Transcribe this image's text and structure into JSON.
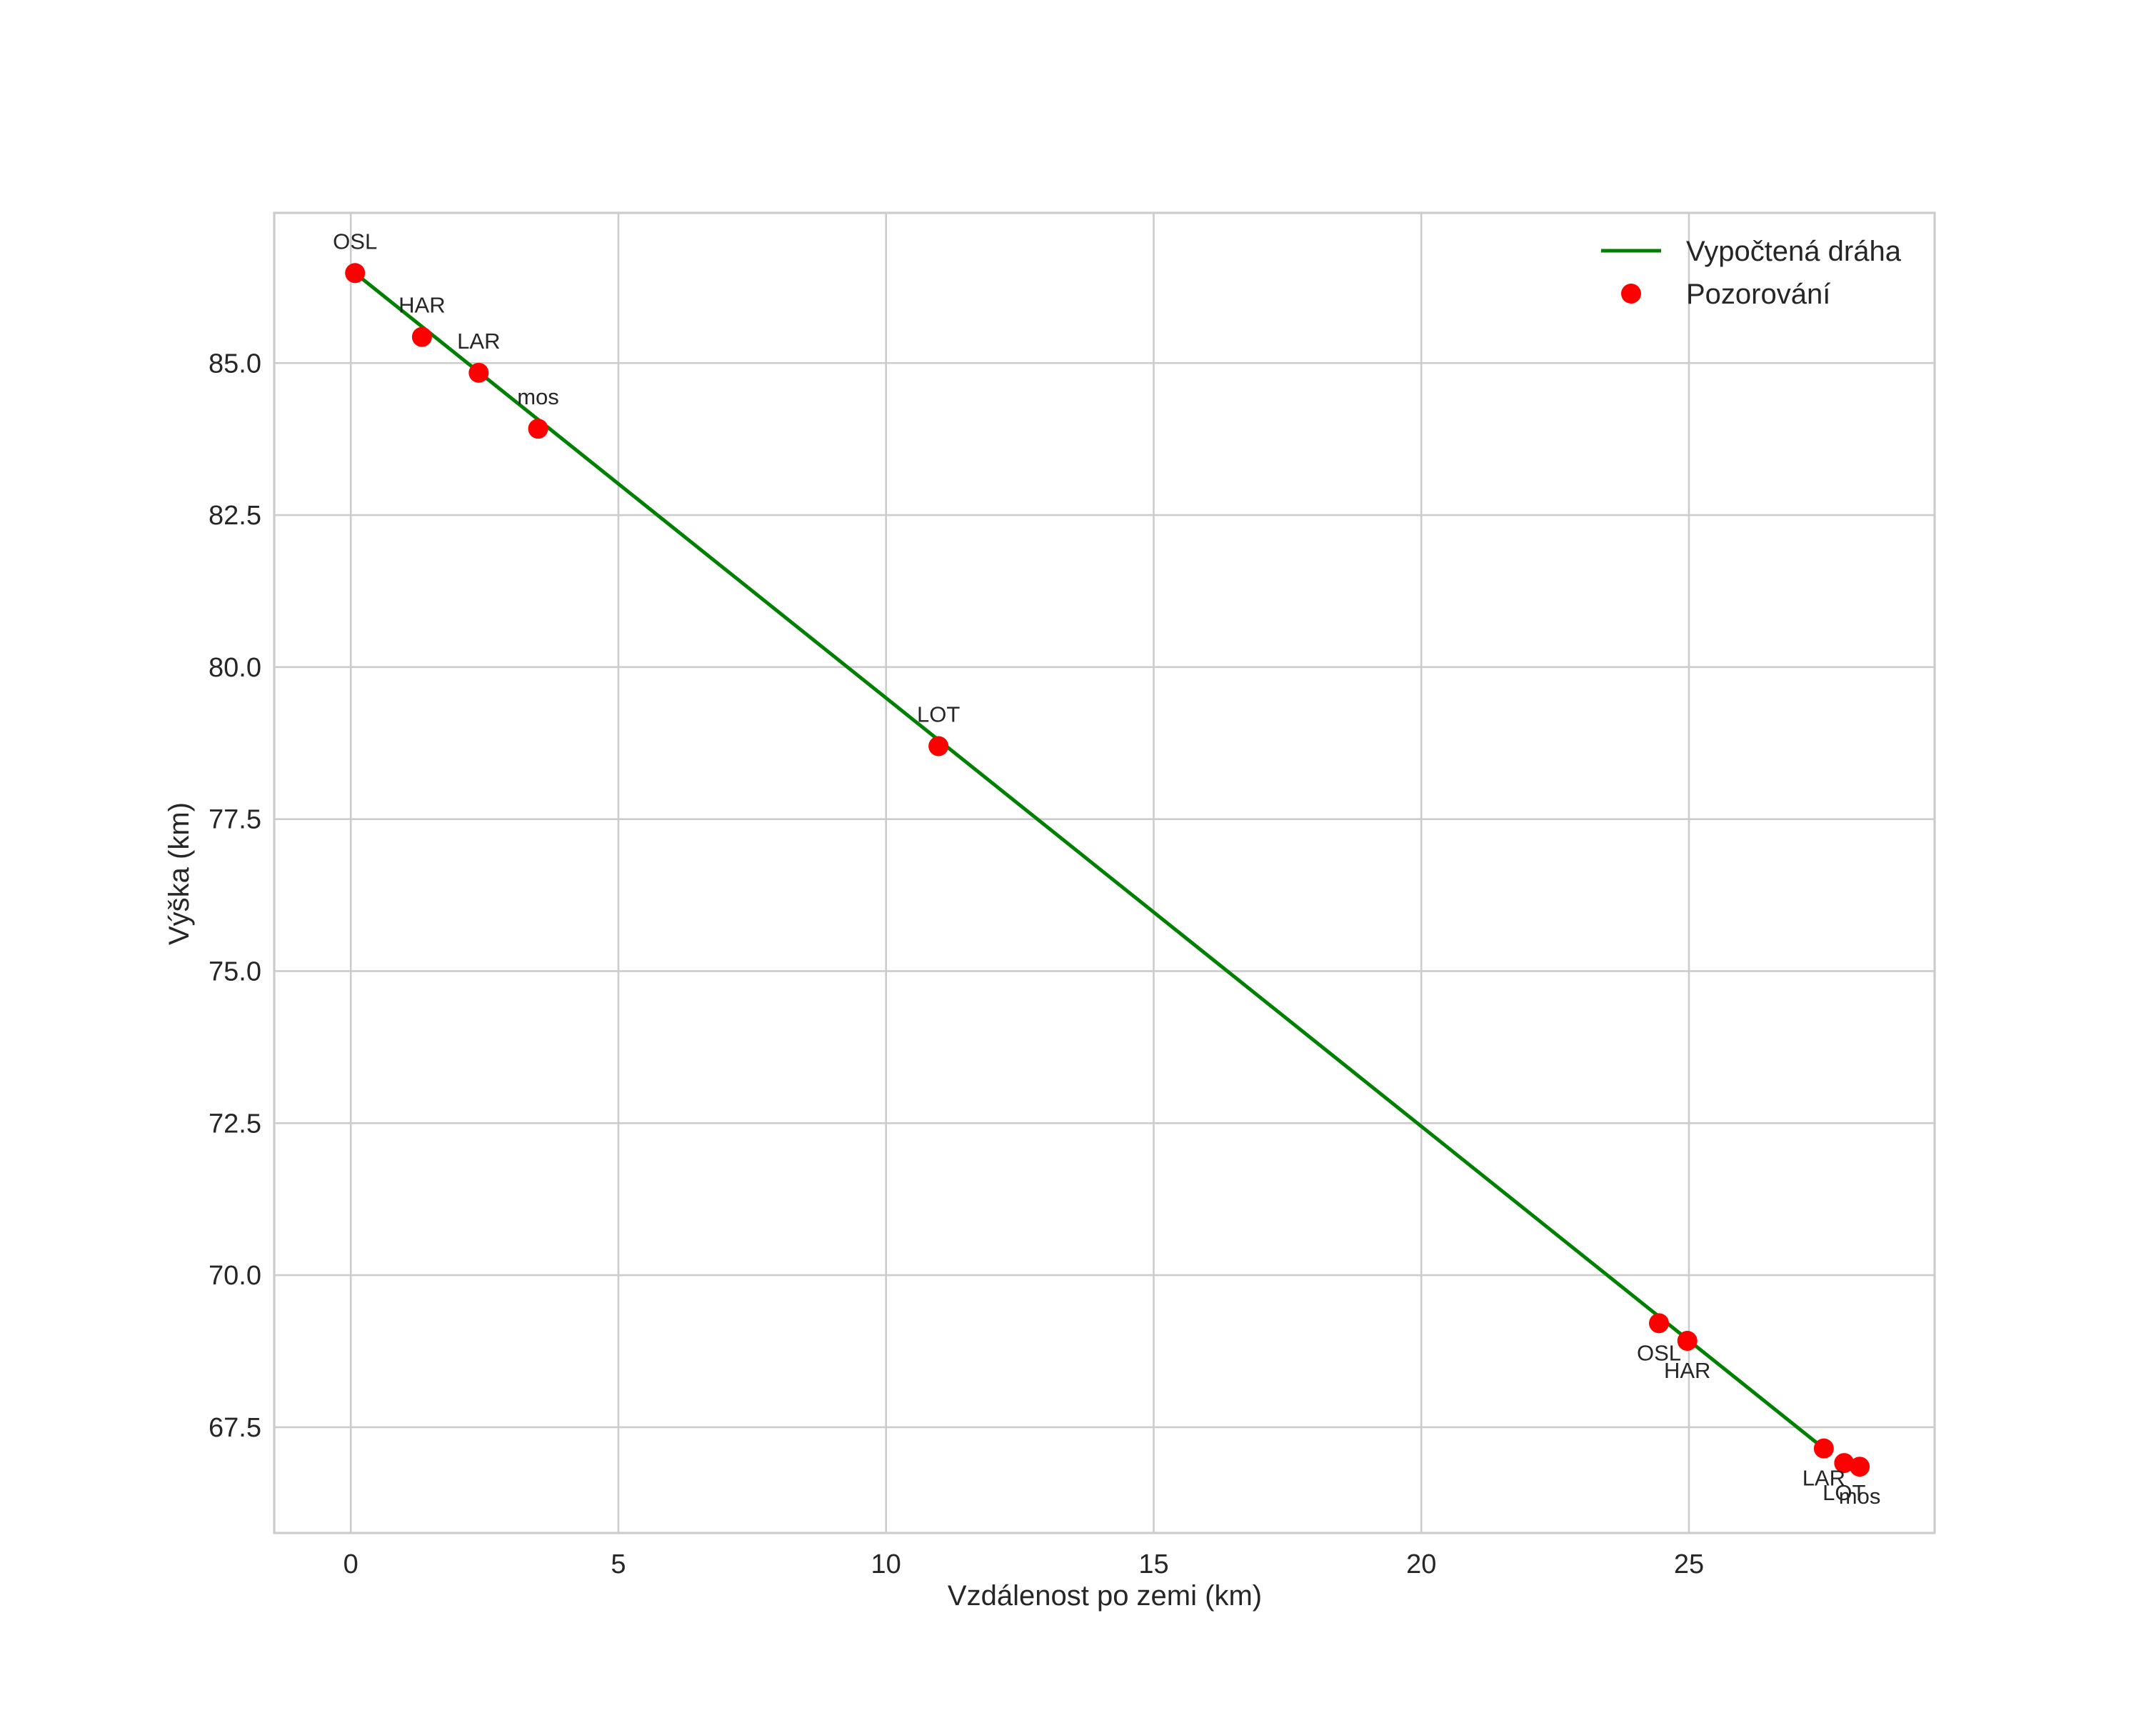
{
  "chart_data": {
    "type": "line",
    "title": "",
    "xlabel": "Vzdálenost po zemi (km)",
    "ylabel": "Výška (km)",
    "xlim": [
      -1.43,
      29.59
    ],
    "ylim": [
      65.76,
      87.47
    ],
    "grid": true,
    "legend_position": "upper right",
    "x_ticks": [
      0,
      5,
      10,
      15,
      20,
      25
    ],
    "x_tick_labels": [
      "0",
      "5",
      "10",
      "15",
      "20",
      "25"
    ],
    "y_ticks": [
      67.5,
      70.0,
      72.5,
      75.0,
      77.5,
      80.0,
      82.5,
      85.0
    ],
    "y_tick_labels": [
      "67.5",
      "70.0",
      "72.5",
      "75.0",
      "77.5",
      "80.0",
      "82.5",
      "85.0"
    ],
    "series": [
      {
        "name": "Vypočtená dráha",
        "type": "line",
        "color": "#008000",
        "x": [
          0.08,
          27.52
        ],
        "y": [
          86.48,
          67.15
        ]
      },
      {
        "name": "Pozorování",
        "type": "scatter",
        "color": "#ff0000",
        "points": [
          {
            "label": "OSL",
            "x": 0.08,
            "y": 86.48,
            "label_pos": "above"
          },
          {
            "label": "HAR",
            "x": 1.33,
            "y": 85.43,
            "label_pos": "above"
          },
          {
            "label": "LAR",
            "x": 2.39,
            "y": 84.84,
            "label_pos": "above"
          },
          {
            "label": "mos",
            "x": 3.5,
            "y": 83.92,
            "label_pos": "above"
          },
          {
            "label": "LOT",
            "x": 10.98,
            "y": 78.7,
            "label_pos": "above"
          },
          {
            "label": "OSL",
            "x": 24.44,
            "y": 69.21,
            "label_pos": "below"
          },
          {
            "label": "HAR",
            "x": 24.97,
            "y": 68.92,
            "label_pos": "below"
          },
          {
            "label": "LAR",
            "x": 27.52,
            "y": 67.15,
            "label_pos": "below"
          },
          {
            "label": "LOT",
            "x": 27.9,
            "y": 66.91,
            "label_pos": "below"
          },
          {
            "label": "mos",
            "x": 28.19,
            "y": 66.85,
            "label_pos": "below"
          }
        ]
      }
    ],
    "legend": [
      {
        "label": "Vypočtená dráha",
        "marker": "line",
        "color": "#008000"
      },
      {
        "label": "Pozorování",
        "marker": "dot",
        "color": "#ff0000"
      }
    ]
  }
}
